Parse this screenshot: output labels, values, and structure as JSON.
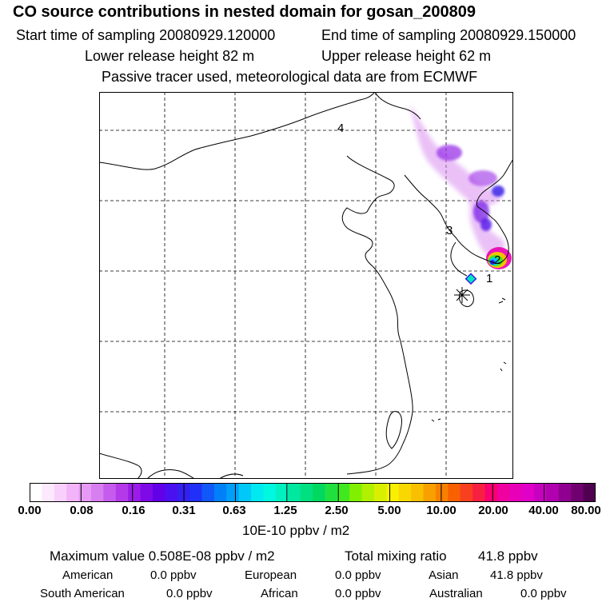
{
  "header": {
    "title": "CO  source contributions in nested domain for gosan_200809",
    "start_time": "Start time of sampling 20080929.120000",
    "end_time": "End time of sampling 20080929.150000",
    "lower_height": "Lower release height   82 m",
    "upper_height": "Upper release height   62 m",
    "tracer_note": "Passive tracer used, meteorological data are from ECMWF"
  },
  "map": {
    "labels": [
      "4",
      "3",
      "2",
      "1"
    ]
  },
  "colorbar": {
    "ticks": [
      "0.00",
      "0.08",
      "0.16",
      "0.31",
      "0.63",
      "1.25",
      "2.50",
      "5.00",
      "10.00",
      "20.00",
      "40.00",
      "80.00"
    ],
    "unit": "10E-10 ppbv / m2",
    "colors": [
      "#ffffff",
      "#fde9fd",
      "#f9d0fb",
      "#f2b4f8",
      "#e79af5",
      "#d77ef1",
      "#c65ced",
      "#b43ae9",
      "#9b1ce8",
      "#7f0ae8",
      "#6200e8",
      "#4b10f0",
      "#3420f0",
      "#2030f8",
      "#1058f8",
      "#0080f8",
      "#00a0f8",
      "#00c8f8",
      "#00e8f0",
      "#00f8e0",
      "#00f0c0",
      "#00e8a0",
      "#00e080",
      "#00d860",
      "#20e040",
      "#40e820",
      "#80f000",
      "#b0f000",
      "#d8f000",
      "#f8f000",
      "#f8d800",
      "#f8c000",
      "#f8a000",
      "#f88000",
      "#f86000",
      "#f84020",
      "#f82040",
      "#f80070",
      "#f000a0",
      "#e800b8",
      "#e000c8",
      "#c800c0",
      "#b000b0",
      "#900090",
      "#700070",
      "#500050"
    ]
  },
  "summary": {
    "max_value": "Maximum value  0.508E-08 ppbv / m2",
    "total_label": "Total mixing ratio",
    "total_value": "41.8 ppbv",
    "regions": [
      {
        "name": "American",
        "value": "0.0 ppbv"
      },
      {
        "name": "European",
        "value": "0.0 ppbv"
      },
      {
        "name": "Asian",
        "value": "41.8 ppbv"
      },
      {
        "name": "South American",
        "value": "0.0 ppbv"
      },
      {
        "name": "African",
        "value": "0.0 ppbv"
      },
      {
        "name": "Australian",
        "value": "0.0 ppbv"
      }
    ]
  }
}
